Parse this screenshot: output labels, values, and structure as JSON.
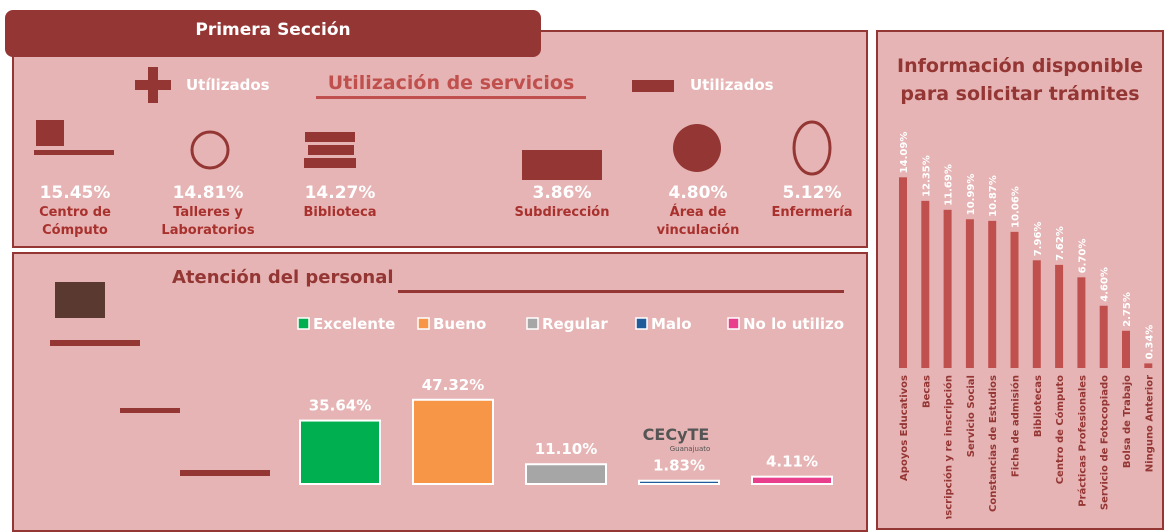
{
  "section_title": "Primera Sección",
  "services": {
    "title": "Utilización de servicios",
    "more_label": "Utílizados",
    "less_label": "Utilizados",
    "items": [
      {
        "percent": "15.45%",
        "name": "Centro de Cómputo"
      },
      {
        "percent": "14.81%",
        "name": "Talleres y Laboratorios"
      },
      {
        "percent": "14.27%",
        "name": "Biblioteca"
      },
      {
        "percent": "3.86%",
        "name": "Subdirección"
      },
      {
        "percent": "4.80%",
        "name": "Área de vinculación"
      },
      {
        "percent": "5.12%",
        "name": "Enfermería"
      }
    ]
  },
  "logo": {
    "name": "CECyTE",
    "sub": "Guanajuato"
  },
  "chart_data": [
    {
      "type": "bar",
      "title": "Atención del personal",
      "categories": [
        "Excelente",
        "Bueno",
        "Regular",
        "Malo",
        "No lo utilizo"
      ],
      "values": [
        35.64,
        47.32,
        11.1,
        1.83,
        4.11
      ],
      "value_labels": [
        "35.64%",
        "47.32%",
        "11.10%",
        "1.83%",
        "4.11%"
      ],
      "colors": [
        "#00b050",
        "#f79646",
        "#a6a6a6",
        "#1f5c99",
        "#e83e8c"
      ],
      "ylim": [
        0,
        50
      ],
      "legend": "top"
    },
    {
      "type": "bar",
      "title": "Información disponible para solicitar trámites",
      "categories": [
        "Apoyos Educativos",
        "Becas",
        "Inscripción y re inscripción",
        "Servicio Social",
        "Constancias de Estudios",
        "Ficha de admisión",
        "Bibliotecas",
        "Centro de Cómputo",
        "Prácticas Profesionales",
        "Servicio de Fotocopiado",
        "Bolsa de Trabajo",
        "Ninguno Anterior"
      ],
      "values": [
        14.09,
        12.35,
        11.69,
        10.99,
        10.87,
        10.06,
        7.96,
        7.62,
        6.7,
        4.6,
        2.75,
        0.34
      ],
      "value_labels": [
        "14.09%",
        "12.35%",
        "11.69%",
        "10.99%",
        "10.87%",
        "10.06%",
        "7.96%",
        "7.62%",
        "6.70%",
        "4.60%",
        "2.75%",
        "0.34%"
      ],
      "color": "#c0504d",
      "ylim": [
        0,
        15
      ]
    }
  ]
}
